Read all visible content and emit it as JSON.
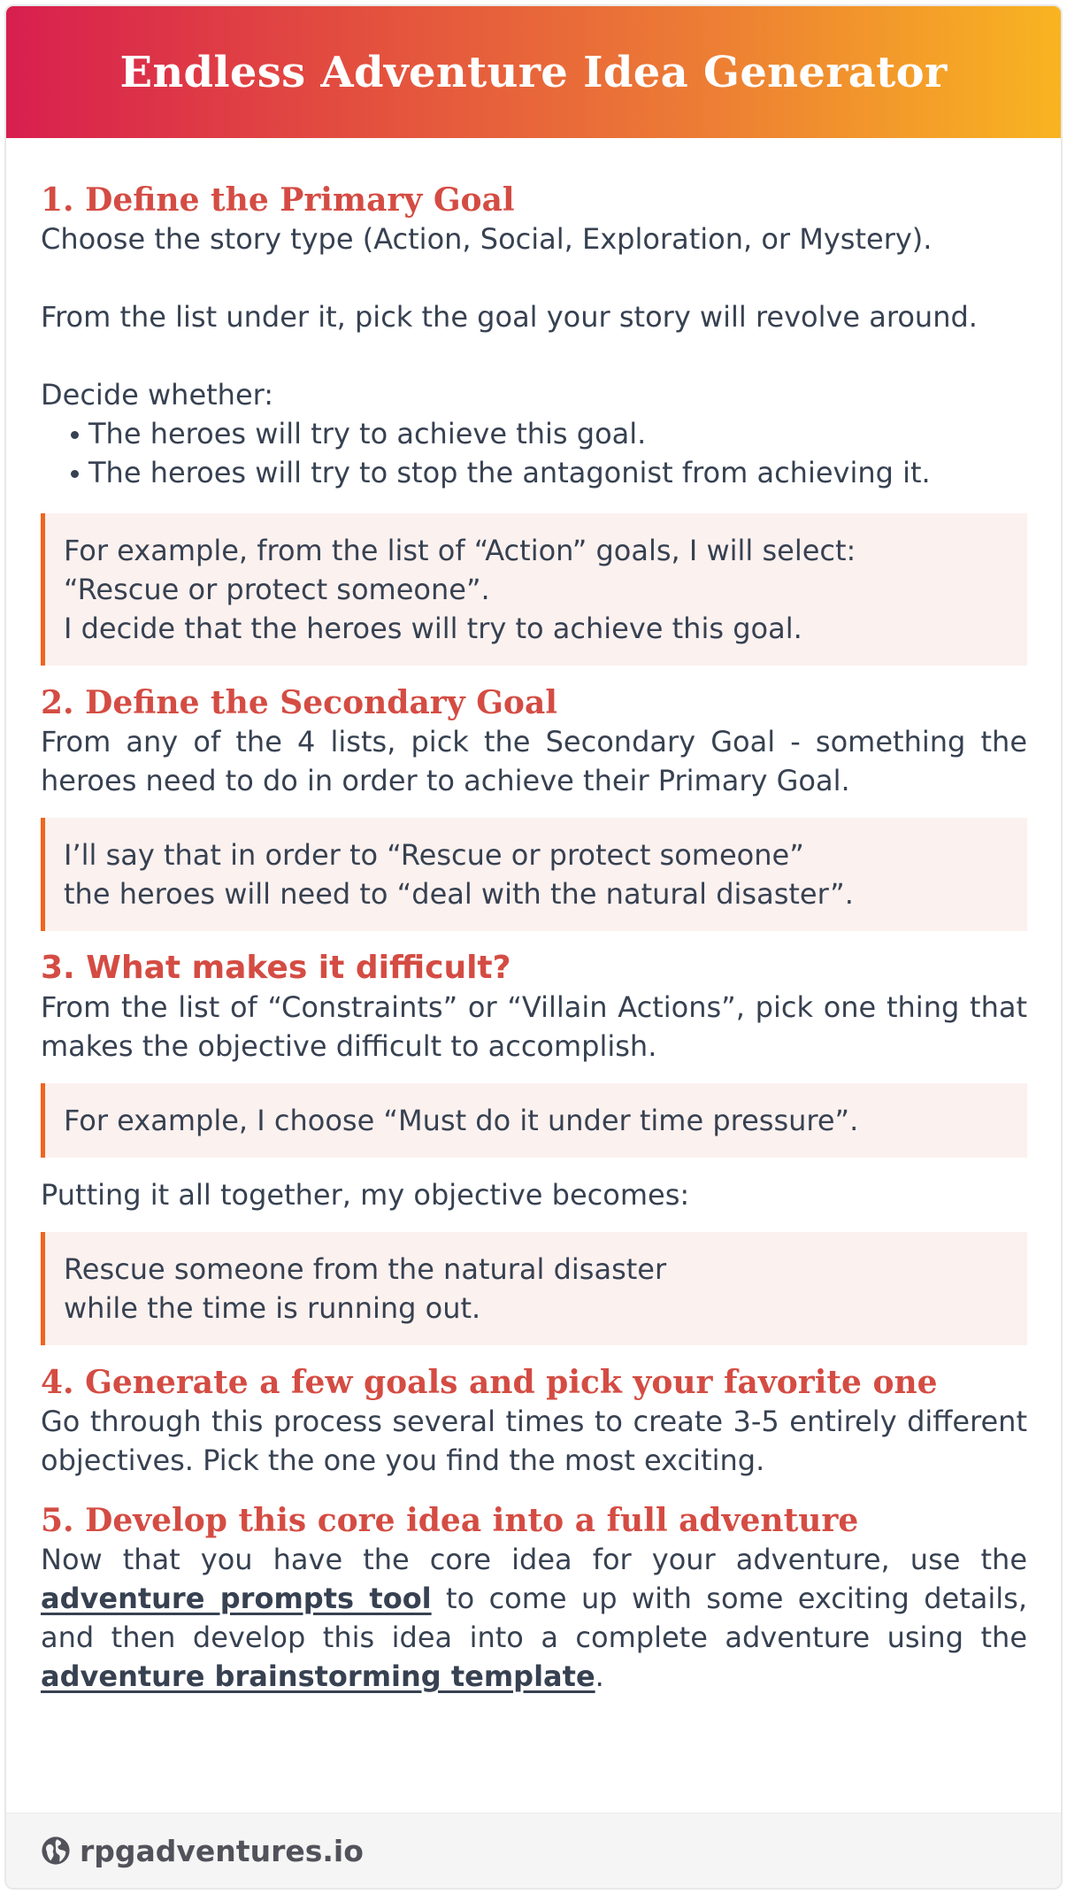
{
  "header": {
    "title": "Endless Adventure Idea Generator"
  },
  "step1": {
    "heading": "1. Define the Primary Goal",
    "p1": "Choose the story type (Action, Social, Exploration, or Mystery).",
    "p2": "From the list under it, pick the goal your story will revolve around.",
    "p3": "Decide whether:",
    "bullets": [
      "The heroes will try to achieve this goal.",
      "The heroes will try to stop the antagonist from achieving it."
    ],
    "example_line1": "For example, from the list of “Action” goals, I will select:",
    "example_line2": "“Rescue or protect someone”.",
    "example_line3": "I decide that the heroes will try to achieve this goal."
  },
  "step2": {
    "heading": "2. Define the Secondary Goal",
    "p1": "From any of the 4 lists, pick the Secondary Goal - something the heroes need to do in order to achieve their Primary Goal.",
    "example_line1": "I’ll say that in order to “Rescue or protect someone”",
    "example_line2": "the heroes will need to “deal with the natural disaster”."
  },
  "step3": {
    "heading": "3. What makes it difficult?",
    "p1": "From the list of “Constraints” or “Villain Actions”, pick one thing that makes the objective difficult to accomplish.",
    "example": "For example, I choose “Must do it under time pressure”.",
    "p2": "Putting it all together, my objective becomes:",
    "result_line1": "Rescue someone from the natural disaster",
    "result_line2": "while the time is running out."
  },
  "step4": {
    "heading": "4. Generate a few goals and pick your favorite one",
    "p1": "Go through this process several times to create 3-5 entirely different objectives. Pick the one you find the most exciting."
  },
  "step5": {
    "heading": "5. Develop this core idea into a full adventure",
    "text_a": "Now that you have the core idea for your adventure, use the ",
    "link1": "adventure prompts tool",
    "text_b": " to come up with some exciting details, and then develop this idea into a complete adventure using the ",
    "link2": "adventure brainstorming template",
    "text_c": "."
  },
  "footer": {
    "site": "rpgadventures.io",
    "icon": "globe-icon"
  },
  "colors": {
    "header_gradient": [
      "#d81f4f",
      "#f8b421"
    ],
    "heading": "#d44c43",
    "example_bg": "#fbf1ef",
    "example_border": "#f0651d",
    "text": "#374151"
  }
}
